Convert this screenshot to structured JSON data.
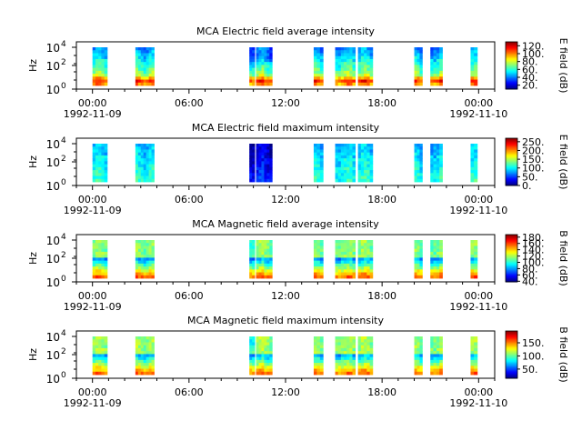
{
  "chart_data": [
    {
      "type": "heatmap",
      "title": "MCA  Electric field average intensity",
      "ylabel": "Hz",
      "colorbar_label": "E field (dB)",
      "colorbar_ticks": [
        "20.",
        "40.",
        "60.",
        "80.",
        "100.",
        "120."
      ],
      "colorbar_range": [
        10,
        130
      ],
      "y_ticks": [
        {
          "base": "10",
          "exp": "0"
        },
        {
          "base": "10",
          "exp": "2"
        },
        {
          "base": "10",
          "exp": "4"
        }
      ],
      "x_ticks": [
        "00:00",
        "06:00",
        "12:00",
        "18:00",
        "00:00"
      ],
      "x_date_left": "1992-11-09",
      "x_date_right": "1992-11-10",
      "variant": "e_avg",
      "x_range": [
        "1992-11-08T23:00",
        "1992-11-10T01:00"
      ],
      "y_scale": "log",
      "colormap": "jet"
    },
    {
      "type": "heatmap",
      "title": "MCA  Electric field maximum intensity",
      "ylabel": "Hz",
      "colorbar_label": "E field (dB)",
      "colorbar_ticks": [
        "0.",
        "50.",
        "100.",
        "150.",
        "200.",
        "250."
      ],
      "colorbar_range": [
        0,
        270
      ],
      "y_ticks": [
        {
          "base": "10",
          "exp": "0"
        },
        {
          "base": "10",
          "exp": "2"
        },
        {
          "base": "10",
          "exp": "4"
        }
      ],
      "x_ticks": [
        "00:00",
        "06:00",
        "12:00",
        "18:00",
        "00:00"
      ],
      "x_date_left": "1992-11-09",
      "x_date_right": "1992-11-10",
      "variant": "e_max",
      "x_range": [
        "1992-11-08T23:00",
        "1992-11-10T01:00"
      ],
      "y_scale": "log",
      "colormap": "jet"
    },
    {
      "type": "heatmap",
      "title": "MCA  Magnetic field average intensity",
      "ylabel": "Hz",
      "colorbar_label": "B field (dB)",
      "colorbar_ticks": [
        "40.",
        "60.",
        "80.",
        "100.",
        "120.",
        "140.",
        "160.",
        "180."
      ],
      "colorbar_range": [
        38,
        188
      ],
      "y_ticks": [
        {
          "base": "10",
          "exp": "0"
        },
        {
          "base": "10",
          "exp": "2"
        },
        {
          "base": "10",
          "exp": "4"
        }
      ],
      "x_ticks": [
        "00:00",
        "06:00",
        "12:00",
        "18:00",
        "00:00"
      ],
      "x_date_left": "1992-11-09",
      "x_date_right": "1992-11-10",
      "variant": "b_avg",
      "x_range": [
        "1992-11-08T23:00",
        "1992-11-10T01:00"
      ],
      "y_scale": "log",
      "colormap": "jet"
    },
    {
      "type": "heatmap",
      "title": "MCA  Magnetic field maximum intensity",
      "ylabel": "Hz",
      "colorbar_label": "B field (dB)",
      "colorbar_ticks": [
        "50.",
        "100.",
        "150."
      ],
      "colorbar_range": [
        15,
        195
      ],
      "y_ticks": [
        {
          "base": "10",
          "exp": "0"
        },
        {
          "base": "10",
          "exp": "2"
        },
        {
          "base": "10",
          "exp": "4"
        }
      ],
      "x_ticks": [
        "00:00",
        "06:00",
        "12:00",
        "18:00",
        "00:00"
      ],
      "x_date_left": "1992-11-09",
      "x_date_right": "1992-11-10",
      "variant": "b_max",
      "x_range": [
        "1992-11-08T23:00",
        "1992-11-10T01:00"
      ],
      "y_scale": "log",
      "colormap": "jet"
    }
  ],
  "data_blocks": [
    [
      "1992-11-09T00:00",
      "1992-11-09T00:55"
    ],
    [
      "1992-11-09T02:40",
      "1992-11-09T03:50"
    ],
    [
      "1992-11-09T09:45",
      "1992-11-09T10:05"
    ],
    [
      "1992-11-09T10:10",
      "1992-11-09T11:10"
    ],
    [
      "1992-11-09T13:45",
      "1992-11-09T14:20"
    ],
    [
      "1992-11-09T15:05",
      "1992-11-09T16:20"
    ],
    [
      "1992-11-09T16:30",
      "1992-11-09T17:25"
    ],
    [
      "1992-11-09T20:00",
      "1992-11-09T20:30"
    ],
    [
      "1992-11-09T21:00",
      "1992-11-09T21:45"
    ],
    [
      "1992-11-09T23:30",
      "1992-11-09T23:55"
    ]
  ]
}
